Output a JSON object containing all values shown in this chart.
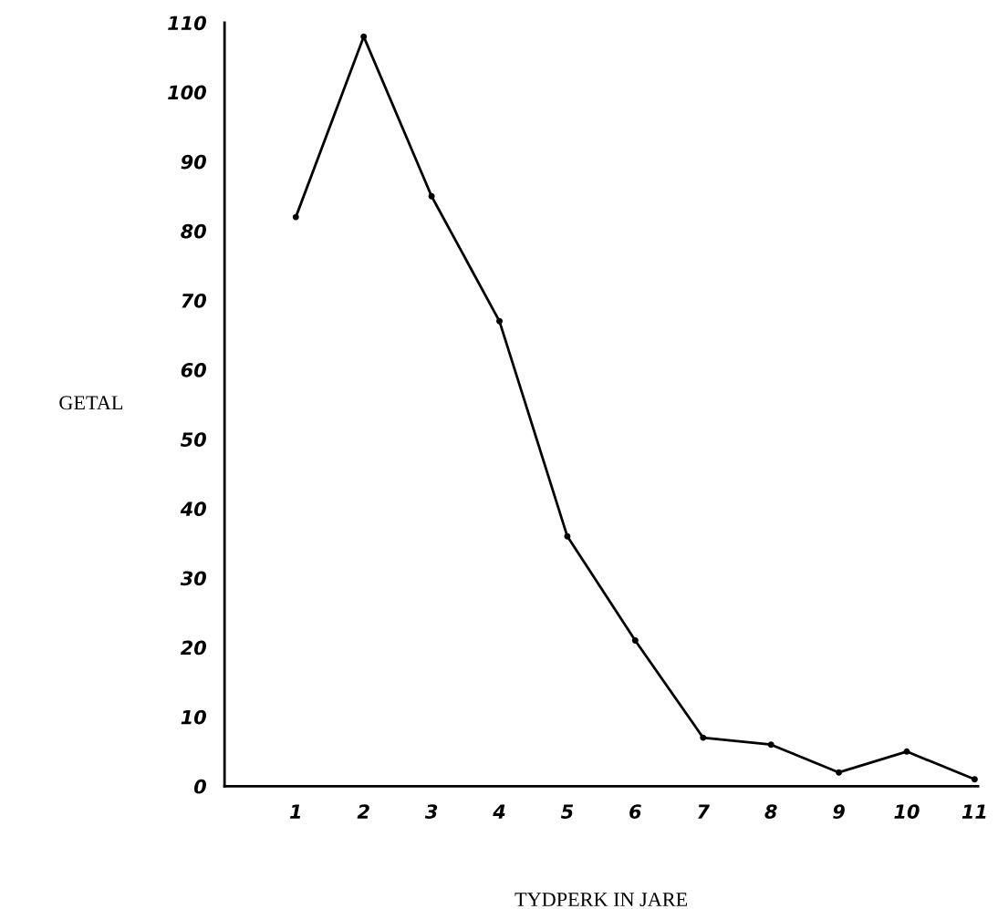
{
  "chart_data": {
    "type": "line",
    "xlabel": "TYDPERK IN JARE",
    "ylabel": "GETAL",
    "categories": [
      "1",
      "2",
      "3",
      "4",
      "5",
      "6",
      "7",
      "8",
      "9",
      "10",
      "11"
    ],
    "values": [
      82,
      108,
      85,
      67,
      36,
      21,
      7,
      6,
      2,
      5,
      1
    ],
    "color": "#000000",
    "marker": "circle",
    "line_style": "solid",
    "grid": false,
    "legend": false,
    "ylim": [
      0,
      110
    ],
    "yticks": [
      0,
      10,
      20,
      30,
      40,
      50,
      60,
      70,
      80,
      90,
      100,
      110
    ]
  }
}
